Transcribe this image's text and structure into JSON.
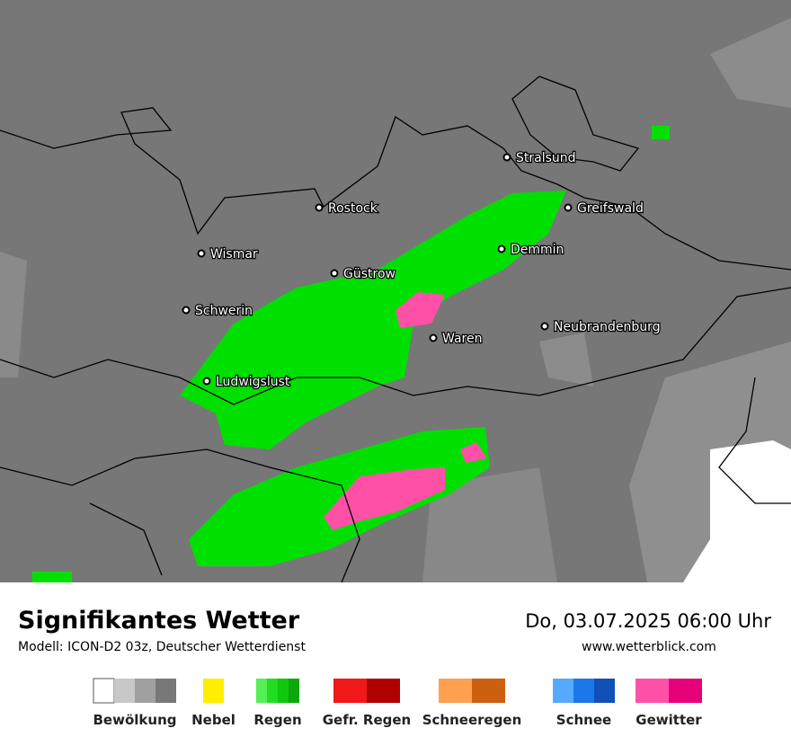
{
  "map": {
    "cities": [
      "Stralsund",
      "Greifswald",
      "Rostock",
      "Demmin",
      "Wismar",
      "Güstrow",
      "Schwerin",
      "Neubrandenburg",
      "Waren",
      "Ludwigslust"
    ]
  },
  "footer": {
    "title": "Signifikantes Wetter",
    "subtitle": "Modell: ICON-D2 03z, Deutscher Wetterdienst",
    "datetime": "Do, 03.07.2025 06:00 Uhr",
    "website": "www.wetterblick.com"
  },
  "legend": [
    {
      "label": "Bewölkung",
      "colors": [
        "#ffffff",
        "#c8c8c8",
        "#a0a0a0",
        "#787878"
      ]
    },
    {
      "label": "Nebel",
      "colors": [
        "#ffee00"
      ]
    },
    {
      "label": "Regen",
      "colors": [
        "#55f055",
        "#22dd22",
        "#11c811",
        "#0aa80a"
      ]
    },
    {
      "label": "Gefr. Regen",
      "colors": [
        "#f01818",
        "#b00000"
      ]
    },
    {
      "label": "Schneeregen",
      "colors": [
        "#ffa050",
        "#cc6010"
      ]
    },
    {
      "label": "Schnee",
      "colors": [
        "#55aaff",
        "#1c78e8",
        "#1050b8"
      ]
    },
    {
      "label": "Gewitter",
      "colors": [
        "#ff50a8",
        "#e6007a"
      ]
    }
  ]
}
